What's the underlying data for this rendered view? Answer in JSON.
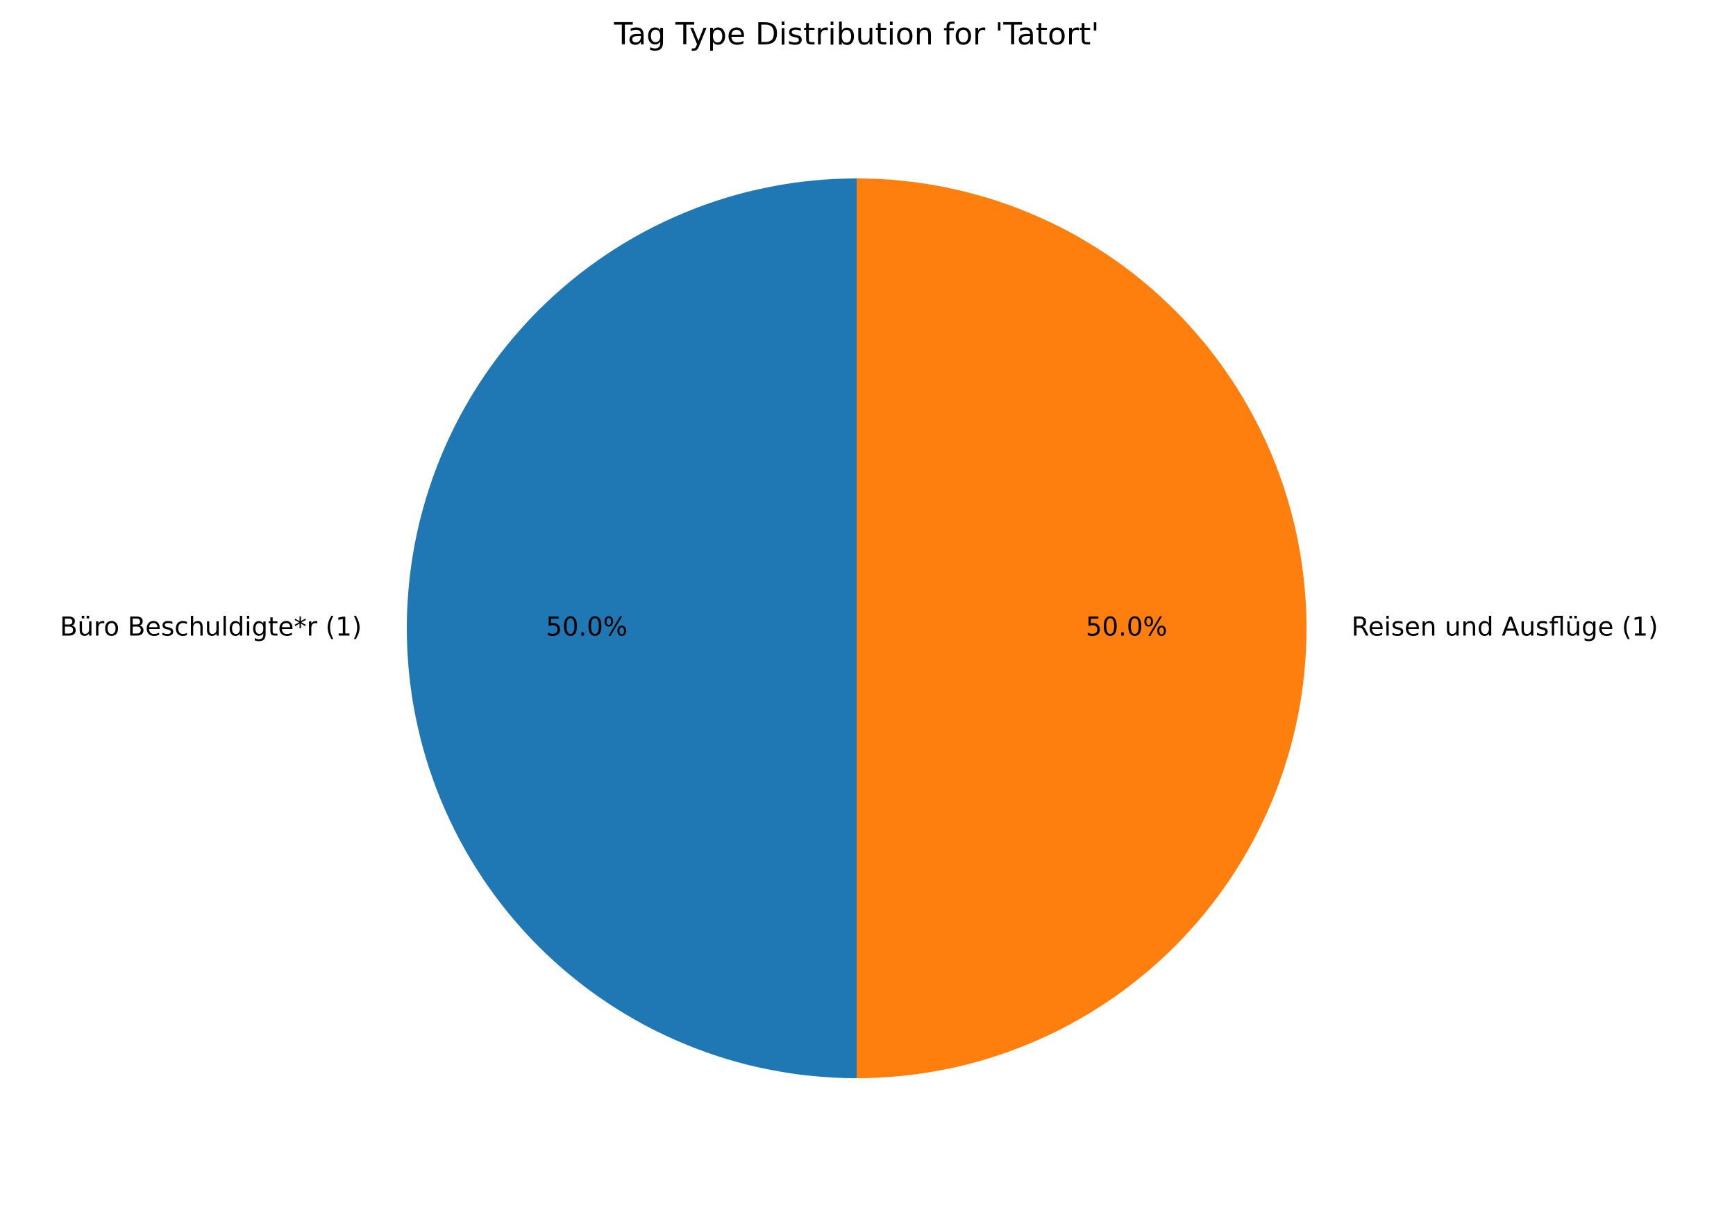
{
  "chart_data": {
    "type": "pie",
    "title": "Tag Type Distribution for 'Tatort'",
    "slices": [
      {
        "label": "Büro Beschuldigte*r (1)",
        "value": 1,
        "percent_label": "50.0%",
        "color": "#1f77b4"
      },
      {
        "label": "Reisen und Ausflüge (1)",
        "value": 1,
        "percent_label": "50.0%",
        "color": "#ff7f0e"
      }
    ],
    "start_angle_deg": 90,
    "direction": "counterclockwise"
  }
}
